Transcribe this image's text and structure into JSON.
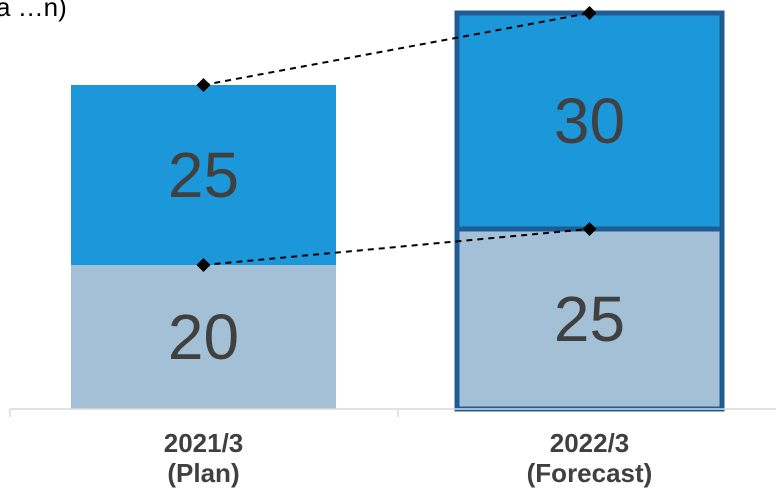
{
  "unit_fragment": "a …n)",
  "chart_data": {
    "type": "bar",
    "stacked": true,
    "categories": [
      [
        "2021/3",
        "(Plan)"
      ],
      [
        "2022/3",
        "(Forecast)"
      ]
    ],
    "series": [
      {
        "values": [
          20,
          25
        ],
        "color": "#A3C0D6"
      },
      {
        "values": [
          25,
          30
        ],
        "color": "#1C97D9"
      }
    ],
    "highlight_category": 1,
    "highlight_border_color": "#1E5C93",
    "ylim": [
      0,
      55
    ],
    "connectors": "dashed lines linking matching segment tops between bars",
    "marker": "black diamond",
    "grid": false,
    "legend": "none"
  }
}
